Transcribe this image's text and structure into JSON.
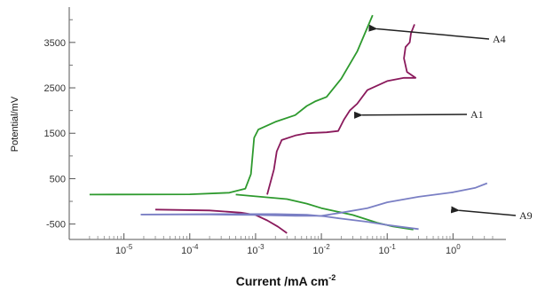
{
  "chart_data": {
    "type": "line",
    "xlabel": "Current /mA cm",
    "xlabel_sup": "-2",
    "ylabel": "Potential/mV",
    "x_scale": "log",
    "xlim": [
      2.5e-06,
      4
    ],
    "ylim": [
      -800,
      4200
    ],
    "x_ticks": [
      {
        "value": 1e-05,
        "base": "10",
        "exp": "-5"
      },
      {
        "value": 0.0001,
        "base": "10",
        "exp": "-4"
      },
      {
        "value": 0.001,
        "base": "10",
        "exp": "-3"
      },
      {
        "value": 0.01,
        "base": "10",
        "exp": "-2"
      },
      {
        "value": 0.1,
        "base": "10",
        "exp": "-1"
      },
      {
        "value": 1,
        "base": "10",
        "exp": "0"
      }
    ],
    "y_ticks": [
      {
        "value": -500,
        "label": "-500"
      },
      {
        "value": 500,
        "label": "500"
      },
      {
        "value": 1500,
        "label": "1500"
      },
      {
        "value": 2500,
        "label": "2500"
      },
      {
        "value": 3500,
        "label": "3500"
      }
    ],
    "grid": false,
    "series": [
      {
        "name": "A4",
        "color": "#2e9a2e",
        "points": [
          [
            3e-06,
            150
          ],
          [
            0.0001,
            155
          ],
          [
            0.0004,
            190
          ],
          [
            0.0007,
            280
          ],
          [
            0.00085,
            600
          ],
          [
            0.00095,
            1400
          ],
          [
            0.0011,
            1580
          ],
          [
            0.002,
            1750
          ],
          [
            0.004,
            1900
          ],
          [
            0.006,
            2100
          ],
          [
            0.008,
            2200
          ],
          [
            0.012,
            2300
          ],
          [
            0.02,
            2700
          ],
          [
            0.035,
            3300
          ],
          [
            0.06,
            4100
          ]
        ]
      },
      {
        "name": "A4",
        "color": "#2e9a2e",
        "points": [
          [
            0.0005,
            150
          ],
          [
            0.001,
            110
          ],
          [
            0.003,
            50
          ],
          [
            0.006,
            -50
          ],
          [
            0.01,
            -150
          ],
          [
            0.03,
            -300
          ],
          [
            0.07,
            -470
          ],
          [
            0.12,
            -550
          ],
          [
            0.25,
            -620
          ]
        ]
      },
      {
        "name": "A1",
        "color": "#8a1a5c",
        "points": [
          [
            0.0015,
            150
          ],
          [
            0.0019,
            700
          ],
          [
            0.0021,
            1100
          ],
          [
            0.0025,
            1350
          ],
          [
            0.004,
            1450
          ],
          [
            0.006,
            1500
          ],
          [
            0.012,
            1520
          ],
          [
            0.018,
            1550
          ],
          [
            0.022,
            1800
          ],
          [
            0.027,
            2000
          ],
          [
            0.035,
            2150
          ],
          [
            0.05,
            2450
          ],
          [
            0.1,
            2650
          ],
          [
            0.18,
            2720
          ],
          [
            0.27,
            2720
          ],
          [
            0.2,
            2850
          ],
          [
            0.18,
            3150
          ],
          [
            0.19,
            3400
          ],
          [
            0.22,
            3500
          ],
          [
            0.23,
            3700
          ],
          [
            0.26,
            3900
          ]
        ]
      },
      {
        "name": "A1",
        "color": "#8a1a5c",
        "points": [
          [
            3e-05,
            -180
          ],
          [
            0.0002,
            -200
          ],
          [
            0.0006,
            -250
          ],
          [
            0.001,
            -300
          ],
          [
            0.0015,
            -420
          ],
          [
            0.0022,
            -560
          ],
          [
            0.003,
            -700
          ]
        ]
      },
      {
        "name": "A9",
        "color": "#7a7fc4",
        "points": [
          [
            1.8e-05,
            -290
          ],
          [
            0.0002,
            -290
          ],
          [
            0.001,
            -300
          ],
          [
            0.004,
            -320
          ],
          [
            0.01,
            -320
          ],
          [
            0.02,
            -250
          ],
          [
            0.05,
            -150
          ],
          [
            0.1,
            -20
          ],
          [
            0.3,
            100
          ],
          [
            1,
            200
          ],
          [
            2.2,
            300
          ],
          [
            3.3,
            400
          ]
        ]
      },
      {
        "name": "A9",
        "color": "#7a7fc4",
        "points": [
          [
            1.8e-05,
            -290
          ],
          [
            0.0003,
            -280
          ],
          [
            0.002,
            -280
          ],
          [
            0.006,
            -295
          ],
          [
            0.011,
            -330
          ],
          [
            0.02,
            -380
          ],
          [
            0.05,
            -450
          ],
          [
            0.1,
            -520
          ],
          [
            0.3,
            -610
          ]
        ]
      }
    ],
    "annotations": [
      {
        "text": "A4",
        "from": [
          0.045,
          3800
        ]
      },
      {
        "text": "A1",
        "from": [
          0.027,
          1900
        ]
      },
      {
        "text": "A9",
        "from": [
          0.8,
          -200
        ]
      }
    ]
  }
}
